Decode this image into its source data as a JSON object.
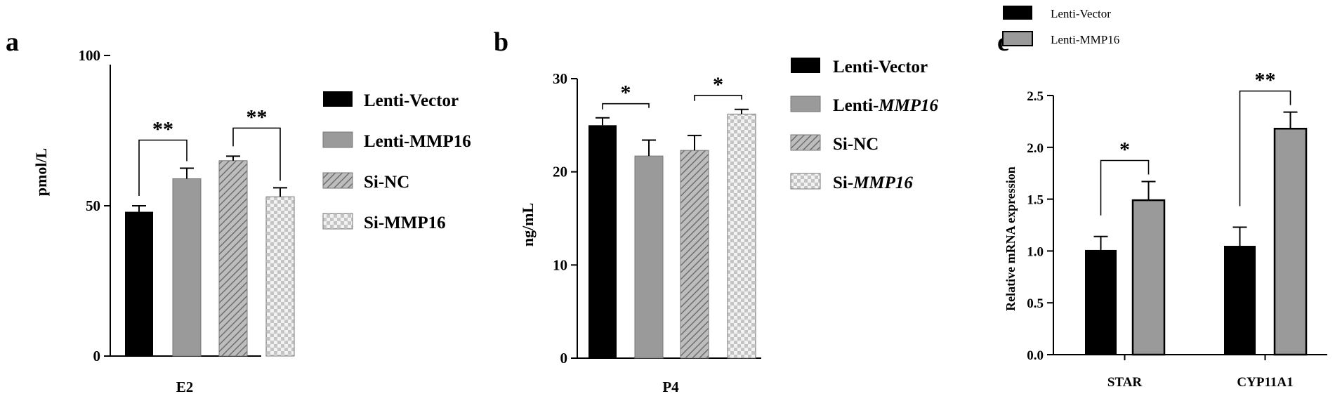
{
  "colors": {
    "black": "#000000",
    "gray": "#9a9a9a"
  },
  "chart_data": [
    {
      "type": "bar",
      "panel": "a",
      "title": "",
      "xlabel": "E2",
      "ylabel": "pmol/L",
      "ylim": [
        0,
        100
      ],
      "yticks": [
        0,
        50,
        100
      ],
      "categories": [
        "E2"
      ],
      "series": [
        {
          "name": "Lenti-Vector",
          "values": [
            48
          ],
          "error": [
            2
          ],
          "fill": "black"
        },
        {
          "name": "Lenti-MMP16",
          "values": [
            59
          ],
          "error": [
            3.5
          ],
          "fill": "gray"
        },
        {
          "name": "Si-NC",
          "values": [
            65
          ],
          "error": [
            1.5
          ],
          "fill": "hatch"
        },
        {
          "name": "Si-MMP16",
          "values": [
            53
          ],
          "error": [
            3
          ],
          "fill": "checker"
        }
      ],
      "annotations": [
        {
          "from": 0,
          "to": 1,
          "label": "**"
        },
        {
          "from": 2,
          "to": 3,
          "label": "**"
        }
      ],
      "legend": "right"
    },
    {
      "type": "bar",
      "panel": "b",
      "title": "",
      "xlabel": "P4",
      "ylabel": "ng/mL",
      "ylim": [
        0,
        30
      ],
      "yticks": [
        0,
        10,
        20,
        30
      ],
      "categories": [
        "P4"
      ],
      "series": [
        {
          "name": "Lenti-Vector",
          "prefix": "Lenti-",
          "suffix": "Vector",
          "italic": false,
          "values": [
            25
          ],
          "error": [
            0.8
          ],
          "fill": "black"
        },
        {
          "name": "Lenti-MMP16",
          "prefix": "Lenti-",
          "suffix": "MMP16",
          "italic": true,
          "values": [
            21.7
          ],
          "error": [
            1.7
          ],
          "fill": "gray"
        },
        {
          "name": "Si-NC",
          "prefix": "Si-",
          "suffix": "NC",
          "italic": false,
          "values": [
            22.3
          ],
          "error": [
            1.6
          ],
          "fill": "hatch"
        },
        {
          "name": "Si-MMP16",
          "prefix": "Si-",
          "suffix": "MMP16",
          "italic": true,
          "values": [
            26.2
          ],
          "error": [
            0.5
          ],
          "fill": "checker"
        }
      ],
      "annotations": [
        {
          "from": 0,
          "to": 1,
          "label": "*"
        },
        {
          "from": 2,
          "to": 3,
          "label": "*"
        }
      ],
      "legend": "right"
    },
    {
      "type": "bar",
      "panel": "c",
      "title": "",
      "xlabel": "",
      "ylabel": "Relative mRNA expression",
      "ylim": [
        0,
        2.5
      ],
      "yticks": [
        "0.0",
        "0.5",
        "1.0",
        "1.5",
        "2.0",
        "2.5"
      ],
      "categories": [
        "STAR",
        "CYP11A1"
      ],
      "series": [
        {
          "name": "Lenti-Vector",
          "values": [
            1.01,
            1.05
          ],
          "error": [
            0.13,
            0.18
          ],
          "fill": "black"
        },
        {
          "name": "Lenti-MMP16",
          "values": [
            1.49,
            2.18
          ],
          "error": [
            0.18,
            0.16
          ],
          "fill": "gray"
        }
      ],
      "annotations": [
        {
          "category": 0,
          "label": "*"
        },
        {
          "category": 1,
          "label": "**"
        }
      ],
      "legend": "top"
    }
  ]
}
